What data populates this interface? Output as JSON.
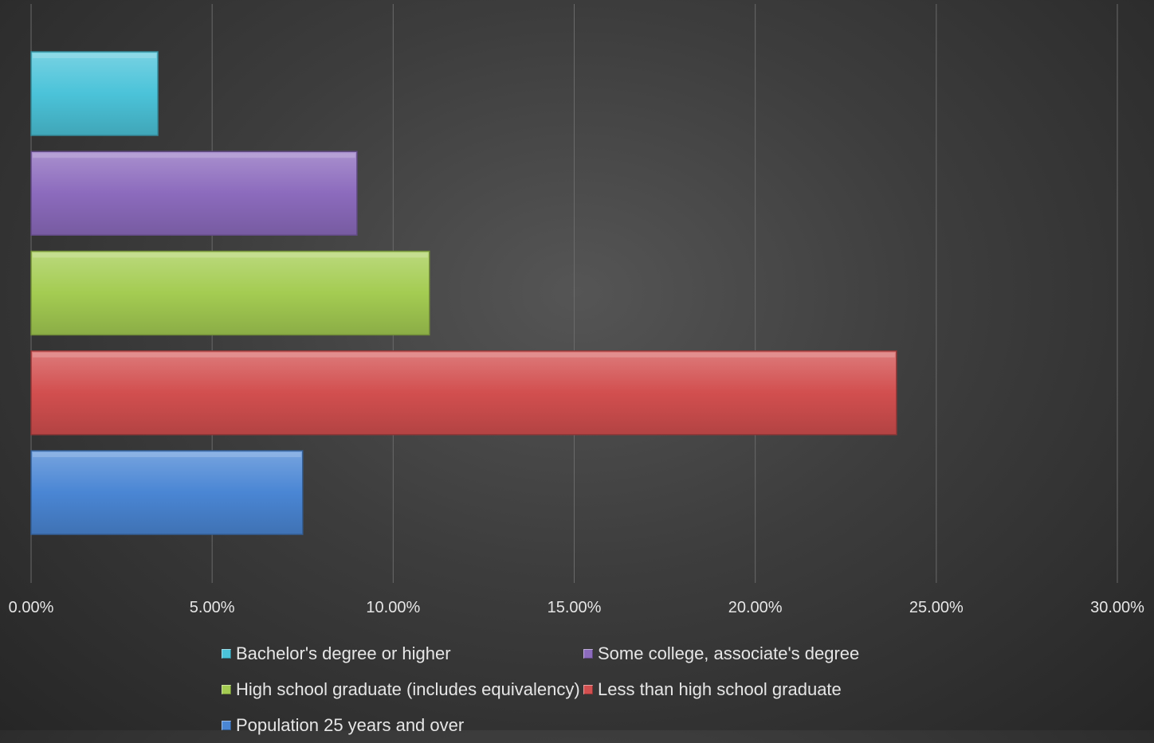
{
  "chart_data": {
    "type": "bar",
    "orientation": "horizontal",
    "title": "",
    "xlabel": "",
    "ylabel": "",
    "xlim": [
      0,
      30
    ],
    "x_ticks": [
      "0.00%",
      "5.00%",
      "10.00%",
      "15.00%",
      "20.00%",
      "25.00%",
      "30.00%"
    ],
    "grid": true,
    "legend_position": "bottom",
    "series": [
      {
        "name": "Bachelor's degree or higher",
        "value": 3.5,
        "color": "#4bc3d9"
      },
      {
        "name": "Some college, associate's degree",
        "value": 9.0,
        "color": "#8c6bbd"
      },
      {
        "name": "High school graduate (includes equivalency)",
        "value": 11.0,
        "color": "#a4cc52"
      },
      {
        "name": "Less than high school graduate",
        "value": 23.9,
        "color": "#d24f4f"
      },
      {
        "name": "Population 25 years and over",
        "value": 7.5,
        "color": "#4a86d4"
      }
    ]
  }
}
